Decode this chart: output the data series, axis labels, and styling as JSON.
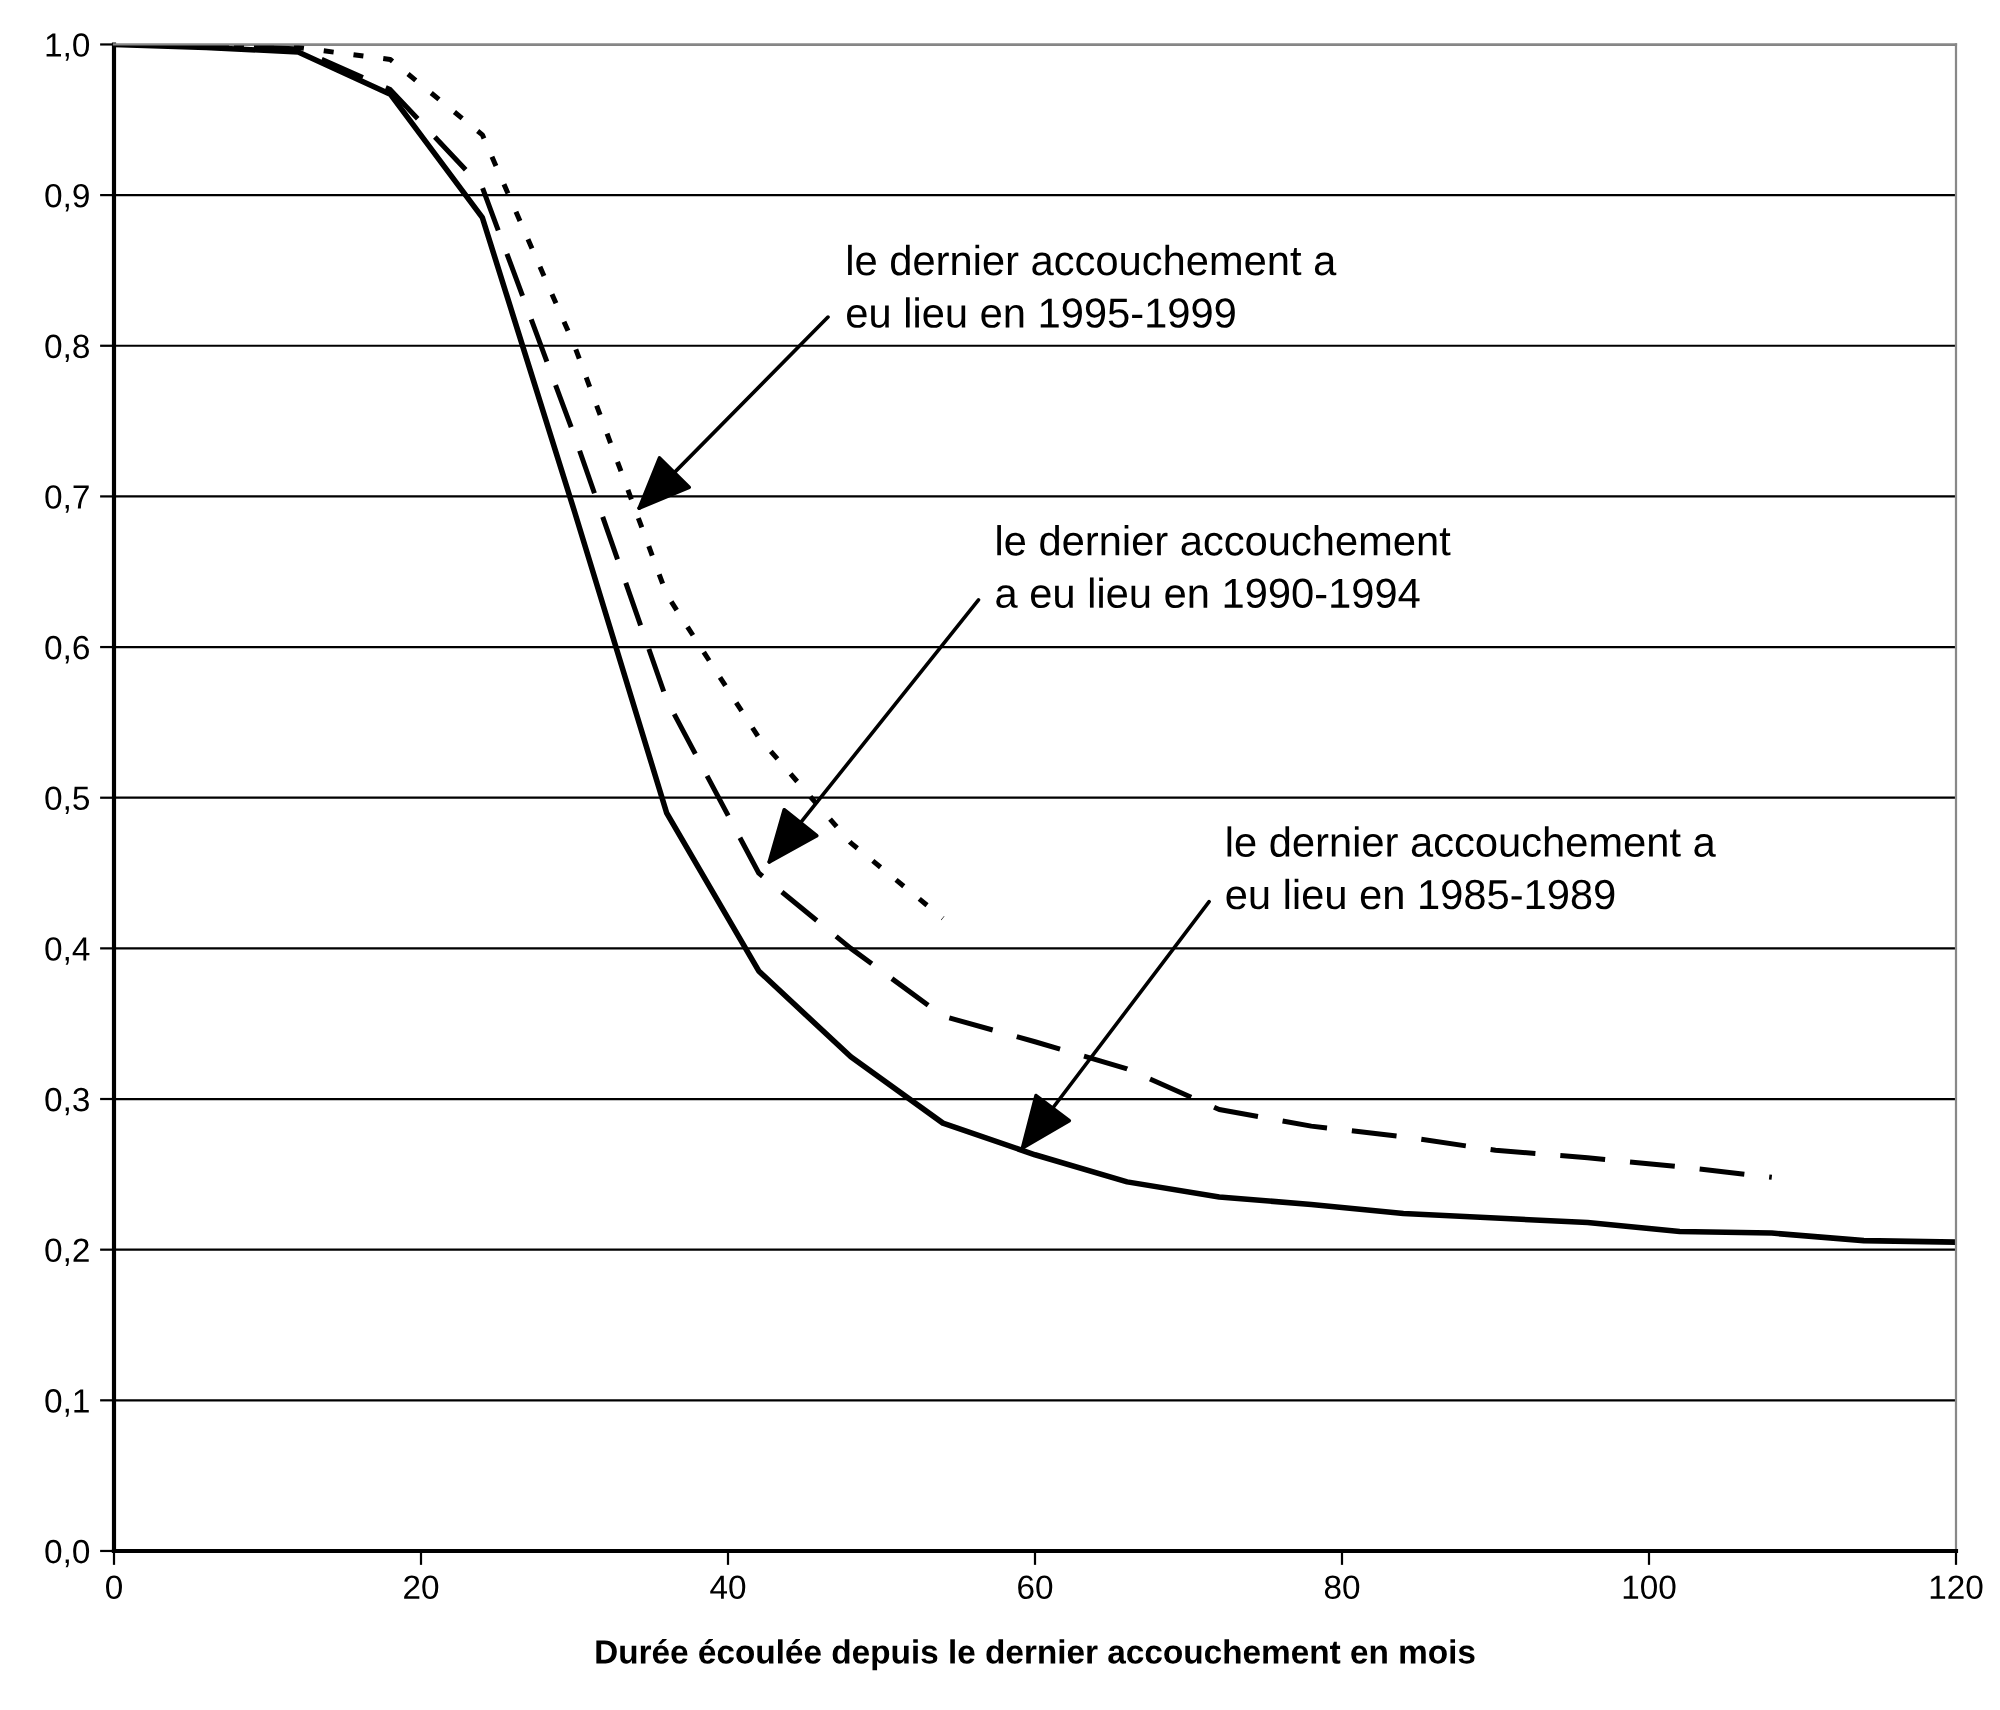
{
  "chart_data": {
    "type": "line",
    "xlabel": "Durée écoulée depuis le dernier accouchement en mois",
    "xlim": [
      0,
      120
    ],
    "xticks": [
      0,
      20,
      40,
      60,
      80,
      100,
      120
    ],
    "ylim": [
      0,
      1
    ],
    "yticks": [
      {
        "value": 0,
        "label": "0,0"
      },
      {
        "value": 0.1,
        "label": "0,1"
      },
      {
        "value": 0.2,
        "label": "0,2"
      },
      {
        "value": 0.3,
        "label": "0,3"
      },
      {
        "value": 0.4,
        "label": "0,4"
      },
      {
        "value": 0.5,
        "label": "0,5"
      },
      {
        "value": 0.6,
        "label": "0,6"
      },
      {
        "value": 0.7,
        "label": "0,7"
      },
      {
        "value": 0.8,
        "label": "0,8"
      },
      {
        "value": 0.9,
        "label": "0,9"
      },
      {
        "value": 1,
        "label": "1,0"
      }
    ],
    "grid": "y",
    "marker": "none",
    "series": [
      {
        "color": "#000000",
        "line_style": "solid",
        "x": [
          0,
          6,
          12,
          18,
          24,
          30,
          36,
          42,
          48,
          54,
          60,
          66,
          72,
          78,
          84,
          90,
          96,
          102,
          108,
          114,
          120
        ],
        "values": [
          1.0,
          0.998,
          0.995,
          0.967,
          0.885,
          0.69,
          0.49,
          0.385,
          0.328,
          0.284,
          0.263,
          0.245,
          0.235,
          0.23,
          0.224,
          0.221,
          0.218,
          0.212,
          0.211,
          0.206,
          0.205
        ]
      },
      {
        "color": "#000000",
        "line_style": "dashed",
        "x": [
          0,
          6,
          12,
          18,
          24,
          30,
          36,
          42,
          48,
          54,
          60,
          66,
          72,
          78,
          84,
          90,
          96,
          102,
          108
        ],
        "values": [
          1.0,
          1.0,
          0.997,
          0.97,
          0.905,
          0.74,
          0.565,
          0.45,
          0.4,
          0.355,
          0.338,
          0.32,
          0.293,
          0.282,
          0.275,
          0.266,
          0.261,
          0.255,
          0.248
        ]
      },
      {
        "color": "#000000",
        "line_style": "dotted",
        "x": [
          0,
          6,
          12,
          18,
          24,
          30,
          36,
          42,
          48,
          54
        ],
        "values": [
          1.0,
          1.0,
          0.998,
          0.99,
          0.94,
          0.8,
          0.635,
          0.54,
          0.47,
          0.42
        ]
      }
    ],
    "annotations": [
      {
        "text": "le dernier accouchement a\neu lieu en 1995-1999",
        "x": 34,
        "y": 0.69
      },
      {
        "text": "le dernier accouchement\na eu lieu en 1990-1994",
        "x": 42.5,
        "y": 0.455
      },
      {
        "text": "le dernier accouchement a\neu lieu en 1985-1989",
        "x": 59,
        "y": 0.265
      }
    ]
  }
}
